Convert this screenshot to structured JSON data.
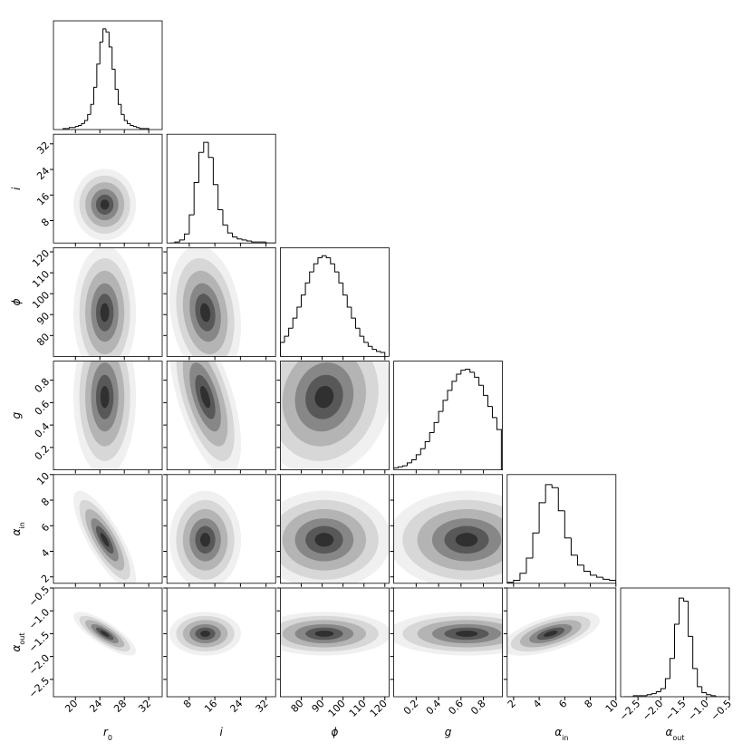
{
  "chart_data": {
    "type": "corner",
    "params": [
      {
        "symbol": "r",
        "subscript": "0",
        "lim": [
          16.4,
          34.2
        ],
        "ticks": [
          20,
          24,
          28,
          32
        ],
        "bins": [
          18,
          18.5,
          19,
          19.5,
          20,
          20.5,
          21,
          21.5,
          22,
          22.5,
          23,
          23.5,
          24,
          24.5,
          25,
          25.5,
          26,
          26.5,
          27,
          27.5,
          28,
          28.5,
          29,
          29.5,
          30,
          30.5,
          31,
          31.5,
          32
        ],
        "counts": [
          0.01,
          0.01,
          0.02,
          0.02,
          0.03,
          0.04,
          0.06,
          0.09,
          0.15,
          0.25,
          0.42,
          0.65,
          0.87,
          1.0,
          0.97,
          0.82,
          0.6,
          0.4,
          0.25,
          0.15,
          0.09,
          0.06,
          0.04,
          0.03,
          0.02,
          0.01,
          0.01,
          0.01
        ]
      },
      {
        "symbol": "i",
        "subscript": null,
        "lim": [
          1,
          35
        ],
        "ticks": [
          8,
          16,
          24,
          32
        ],
        "bins": [
          2,
          3.5,
          5,
          6.5,
          8,
          9.5,
          11,
          12.5,
          14,
          15.5,
          17,
          18.5,
          20,
          21.5,
          23,
          24.5,
          26,
          27.5,
          29,
          30.5,
          32,
          33.5,
          35
        ],
        "counts": [
          0.0,
          0.01,
          0.03,
          0.09,
          0.28,
          0.6,
          0.9,
          1.0,
          0.85,
          0.58,
          0.33,
          0.18,
          0.1,
          0.06,
          0.04,
          0.03,
          0.02,
          0.01,
          0.01,
          0.01,
          0.0,
          0.0
        ]
      },
      {
        "symbol": "ϕ",
        "subscript": null,
        "lim": [
          70,
          122
        ],
        "ticks": [
          80,
          90,
          100,
          110,
          120
        ],
        "bins": [
          70,
          72,
          74,
          76,
          78,
          80,
          82,
          84,
          86,
          88,
          90,
          92,
          94,
          96,
          98,
          100,
          102,
          104,
          106,
          108,
          110,
          112,
          114,
          116,
          118,
          120
        ],
        "counts": [
          0.14,
          0.2,
          0.28,
          0.38,
          0.49,
          0.61,
          0.73,
          0.84,
          0.92,
          0.98,
          1.0,
          0.98,
          0.92,
          0.84,
          0.73,
          0.61,
          0.49,
          0.38,
          0.28,
          0.2,
          0.14,
          0.1,
          0.07,
          0.05,
          0.04
        ]
      },
      {
        "symbol": "g",
        "subscript": null,
        "lim": [
          0,
          0.97
        ],
        "ticks": [
          0.2,
          0.4,
          0.6,
          0.8
        ],
        "bins": [
          0,
          0.04,
          0.08,
          0.12,
          0.16,
          0.2,
          0.24,
          0.28,
          0.32,
          0.36,
          0.4,
          0.44,
          0.48,
          0.52,
          0.56,
          0.6,
          0.64,
          0.68,
          0.72,
          0.76,
          0.8,
          0.84,
          0.88,
          0.92,
          0.96
        ],
        "counts": [
          0.02,
          0.03,
          0.04,
          0.07,
          0.1,
          0.15,
          0.21,
          0.28,
          0.37,
          0.47,
          0.58,
          0.69,
          0.79,
          0.88,
          0.95,
          0.99,
          1.0,
          0.97,
          0.92,
          0.84,
          0.74,
          0.63,
          0.52,
          0.4
        ]
      },
      {
        "symbol": "α",
        "subscript": "in",
        "lim": [
          1.5,
          10
        ],
        "ticks": [
          2,
          4,
          6,
          8,
          10
        ],
        "bins": [
          1.5,
          2,
          2.5,
          3,
          3.5,
          4,
          4.5,
          5,
          5.5,
          6,
          6.5,
          7,
          7.5,
          8,
          8.5,
          9,
          9.5,
          10
        ],
        "counts": [
          0.01,
          0.03,
          0.1,
          0.25,
          0.5,
          0.8,
          0.98,
          0.95,
          0.72,
          0.45,
          0.28,
          0.18,
          0.12,
          0.08,
          0.06,
          0.04,
          0.03
        ]
      },
      {
        "symbol": "α",
        "subscript": "out",
        "lim": [
          -2.88,
          -0.5
        ],
        "ticks": [
          {
            "value": -2.5,
            "label": "−2.5"
          },
          {
            "value": -2,
            "label": "−2.0"
          },
          {
            "value": -1.5,
            "label": "−1.5"
          },
          {
            "value": -1,
            "label": "−1.0"
          },
          {
            "value": -0.5,
            "label": "−0.5"
          }
        ],
        "bins": [
          -2.8,
          -2.7,
          -2.6,
          -2.5,
          -2.4,
          -2.3,
          -2.2,
          -2.1,
          -2.0,
          -1.9,
          -1.8,
          -1.7,
          -1.6,
          -1.5,
          -1.4,
          -1.3,
          -1.2,
          -1.1,
          -1.0,
          -0.9,
          -0.8,
          -0.7,
          -0.6
        ],
        "counts": [
          0.0,
          0.0,
          0.01,
          0.01,
          0.01,
          0.02,
          0.03,
          0.05,
          0.08,
          0.18,
          0.38,
          0.72,
          0.98,
          0.95,
          0.6,
          0.28,
          0.1,
          0.04,
          0.02,
          0.01,
          0.0,
          0.0
        ]
      }
    ],
    "hist_ylim": [
      0,
      1.08
    ],
    "color": "#000000",
    "pairs": [
      {
        "center": [
          24.8,
          13
        ],
        "sd": [
          1.6,
          3.5
        ],
        "rho": 0
      },
      {
        "center": [
          24.8,
          91
        ],
        "sd": [
          1.6,
          10
        ],
        "rho": 0
      },
      {
        "center": [
          13,
          91
        ],
        "sd": [
          3.5,
          10
        ],
        "rho": -0.2
      },
      {
        "center": [
          24.8,
          0.65
        ],
        "sd": [
          1.6,
          0.22
        ],
        "rho": 0
      },
      {
        "center": [
          13,
          0.65
        ],
        "sd": [
          3.5,
          0.22
        ],
        "rho": -0.6
      },
      {
        "center": [
          91,
          0.65
        ],
        "sd": [
          10,
          0.22
        ],
        "rho": 0.1
      },
      {
        "center": [
          24.8,
          4.9
        ],
        "sd": [
          1.6,
          1.2
        ],
        "rho": -0.8
      },
      {
        "center": [
          13,
          4.9
        ],
        "sd": [
          3.5,
          1.2
        ],
        "rho": 0
      },
      {
        "center": [
          91,
          4.9
        ],
        "sd": [
          10,
          1.2
        ],
        "rho": 0
      },
      {
        "center": [
          0.65,
          4.9
        ],
        "sd": [
          0.22,
          1.2
        ],
        "rho": 0
      },
      {
        "center": [
          24.8,
          -1.5
        ],
        "sd": [
          1.6,
          0.15
        ],
        "rho": -0.8
      },
      {
        "center": [
          13,
          -1.5
        ],
        "sd": [
          3.5,
          0.15
        ],
        "rho": 0
      },
      {
        "center": [
          91,
          -1.5
        ],
        "sd": [
          10,
          0.15
        ],
        "rho": 0
      },
      {
        "center": [
          0.65,
          -1.5
        ],
        "sd": [
          0.22,
          0.15
        ],
        "rho": 0
      },
      {
        "center": [
          4.9,
          -1.5
        ],
        "sd": [
          1.2,
          0.15
        ],
        "rho": 0.6
      }
    ]
  }
}
